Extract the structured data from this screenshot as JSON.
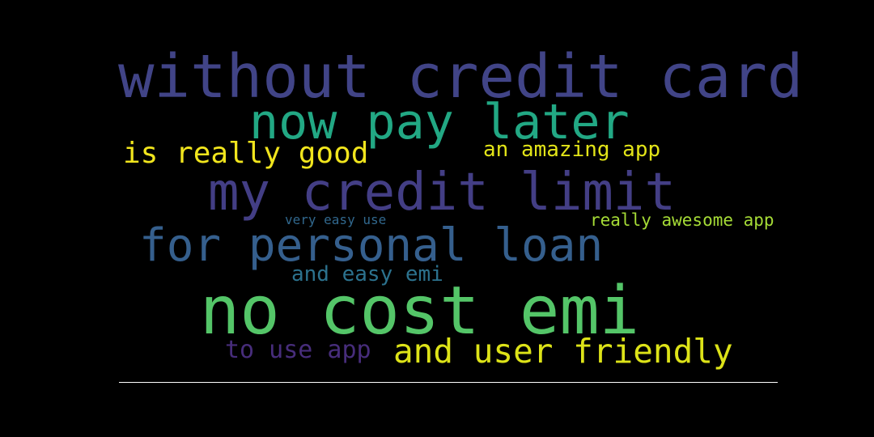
{
  "wordcloud": {
    "words": [
      {
        "text": "without credit card",
        "color": "#414487"
      },
      {
        "text": "now pay later",
        "color": "#22a884"
      },
      {
        "text": "is really good",
        "color": "#f1e51d"
      },
      {
        "text": "an amazing app",
        "color": "#e2e418"
      },
      {
        "text": "my credit limit",
        "color": "#433e85"
      },
      {
        "text": "very easy use",
        "color": "#31688e"
      },
      {
        "text": "really awesome app",
        "color": "#a5db36"
      },
      {
        "text": "for personal loan",
        "color": "#355f8d"
      },
      {
        "text": "and easy emi",
        "color": "#2c728e"
      },
      {
        "text": "no cost emi",
        "color": "#54c568"
      },
      {
        "text": "to use app",
        "color": "#472d7b"
      },
      {
        "text": "and user friendly",
        "color": "#dde318"
      }
    ]
  }
}
